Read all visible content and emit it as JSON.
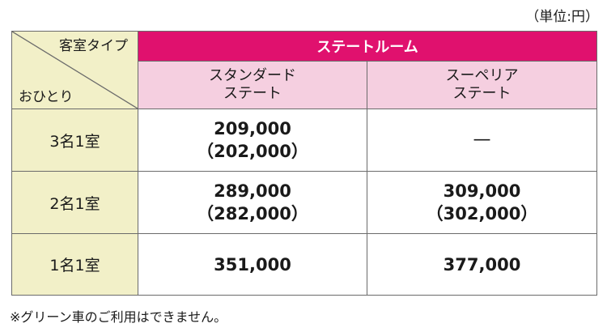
{
  "unit_label": "（単位:円）",
  "header": {
    "room_type_label": "客室タイプ",
    "guests_label": "おひとり",
    "group_label": "ステートルーム",
    "columns": [
      {
        "line1": "スタンダード",
        "line2": "ステート"
      },
      {
        "line1": "スーペリア",
        "line2": "ステート"
      }
    ]
  },
  "rows": [
    {
      "label": "3名1室",
      "standard": {
        "price": "209,000",
        "sub_price": "（202,000）"
      },
      "superior": {
        "price": "—",
        "sub_price": ""
      }
    },
    {
      "label": "2名1室",
      "standard": {
        "price": "289,000",
        "sub_price": "（282,000）"
      },
      "superior": {
        "price": "309,000",
        "sub_price": "（302,000）"
      }
    },
    {
      "label": "1名1室",
      "standard": {
        "price": "351,000",
        "sub_price": ""
      },
      "superior": {
        "price": "377,000",
        "sub_price": ""
      }
    }
  ],
  "footnote": "※グリーン車のご利用はできません。",
  "colors": {
    "header_magenta": "#e0116e",
    "header_pink": "#f5cfe0",
    "row_header_cream": "#f2f0c8",
    "border": "#6b6b6b"
  }
}
